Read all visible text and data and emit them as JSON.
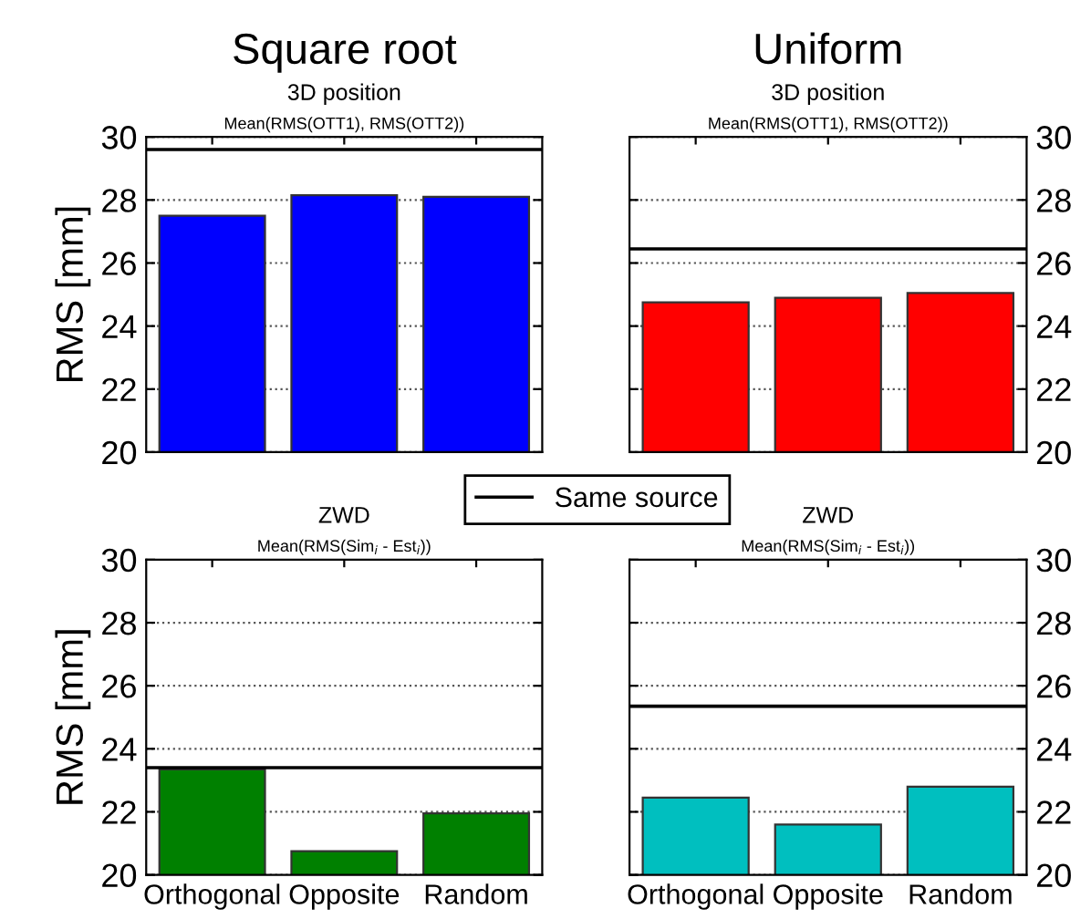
{
  "chart_data": [
    {
      "type": "bar",
      "title": "Square root",
      "subtitle": "3D position",
      "annotations": [
        "Mean(RMS(OTT1), RMS(OTT2))"
      ],
      "ylabel": "RMS [mm]",
      "categories": [
        null,
        null,
        null
      ],
      "values": [
        27.5,
        28.15,
        28.1
      ],
      "color": "#0000ff",
      "ylim": [
        20,
        30
      ],
      "yticks": [
        20,
        22,
        24,
        26,
        28,
        30
      ],
      "grid": "y",
      "tick_labels": "y",
      "ref_lines": [
        {
          "axis": "y",
          "value": 29.6,
          "label": "Same source",
          "color": "#000000"
        }
      ],
      "legend": "bottom right"
    },
    {
      "type": "bar",
      "title": "Uniform",
      "subtitle": "3D position",
      "annotations": [
        "Mean(RMS(OTT1), RMS(OTT2))"
      ],
      "categories": [
        null,
        null,
        null
      ],
      "values": [
        24.75,
        24.9,
        25.05
      ],
      "color": "#ff0000",
      "ylim": [
        20,
        30
      ],
      "yticks": [
        20,
        22,
        24,
        26,
        28,
        30
      ],
      "grid": "y",
      "tick_labels": "y",
      "ref_lines": [
        {
          "axis": "y",
          "value": 26.45,
          "color": "#000000"
        }
      ]
    },
    {
      "type": "bar",
      "title": "ZWD",
      "subtitle": "Mean(RMS(Sim$_{i}$ - Est$_{i}$))",
      "ylabel": "RMS [mm]",
      "categories": [
        "Orthogonal",
        "Opposite",
        "Random"
      ],
      "values": [
        23.35,
        20.75,
        21.95
      ],
      "color": "#008000",
      "ylim": [
        20,
        30
      ],
      "yticks": [
        20,
        22,
        24,
        26,
        28,
        30
      ],
      "grid": "y",
      "ref_lines": [
        {
          "axis": "y",
          "value": 23.4,
          "color": "#000000"
        }
      ]
    },
    {
      "type": "bar",
      "title": "ZWD",
      "subtitle": "Mean(RMS(Sim$_{i}$ - Est$_{i}$))",
      "categories": [
        "Orthogonal",
        "Opposite",
        "Random"
      ],
      "values": [
        22.45,
        21.6,
        22.8
      ],
      "color": "#00bfbf",
      "ylim": [
        20,
        30
      ],
      "yticks": [
        20,
        22,
        24,
        26,
        28,
        30
      ],
      "grid": "y",
      "ref_lines": [
        {
          "axis": "y",
          "value": 25.35,
          "color": "#000000"
        }
      ]
    }
  ]
}
